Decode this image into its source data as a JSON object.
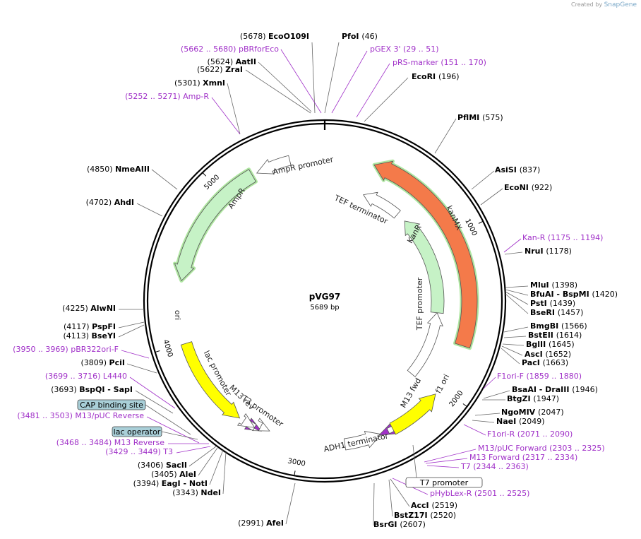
{
  "credit": {
    "created_by": "Created by",
    "logo": "SnapGene"
  },
  "plasmid": {
    "name": "pVG97",
    "size": "5689 bp"
  },
  "site_labels": [
    {
      "type": "enzyme",
      "name": "EcoO109I",
      "coord": "(5678)"
    },
    {
      "type": "enzyme",
      "name": "PfoI",
      "coord": "(46)"
    },
    {
      "type": "primer",
      "name": "pBRforEco",
      "coord": "(5662 .. 5680)"
    },
    {
      "type": "primer",
      "name": "pGEX 3'",
      "coord": "(29 .. 51)"
    },
    {
      "type": "enzyme",
      "name": "AatII",
      "coord": "(5624)"
    },
    {
      "type": "primer",
      "name": "pRS-marker",
      "coord": "(151 .. 170)"
    },
    {
      "type": "enzyme",
      "name": "ZraI",
      "coord": "(5622)"
    },
    {
      "type": "enzyme",
      "name": "EcoRI",
      "coord": "(196)"
    },
    {
      "type": "enzyme",
      "name": "XmnI",
      "coord": "(5301)"
    },
    {
      "type": "primer",
      "name": "Amp-R",
      "coord": "(5252 .. 5271)"
    },
    {
      "type": "enzyme",
      "name": "PflMI",
      "coord": "(575)"
    },
    {
      "type": "enzyme",
      "name": "NmeAIII",
      "coord": "(4850)"
    },
    {
      "type": "enzyme",
      "name": "AsiSI",
      "coord": "(837)"
    },
    {
      "type": "enzyme",
      "name": "EcoNI",
      "coord": "(922)"
    },
    {
      "type": "enzyme",
      "name": "AhdI",
      "coord": "(4702)"
    },
    {
      "type": "primer",
      "name": "Kan-R",
      "coord": "(1175 .. 1194)"
    },
    {
      "type": "enzyme",
      "name": "NruI",
      "coord": "(1178)"
    },
    {
      "type": "enzyme",
      "name": "MluI",
      "coord": "(1398)"
    },
    {
      "type": "enzyme",
      "name": "BfuAI - BspMI",
      "coord": "(1420)"
    },
    {
      "type": "enzyme",
      "name": "PstI",
      "coord": "(1439)"
    },
    {
      "type": "enzyme",
      "name": "BseRI",
      "coord": "(1457)"
    },
    {
      "type": "enzyme",
      "name": "AlwNI",
      "coord": "(4225)"
    },
    {
      "type": "enzyme",
      "name": "BmgBI",
      "coord": "(1566)"
    },
    {
      "type": "enzyme",
      "name": "PspFI",
      "coord": "(4117)"
    },
    {
      "type": "enzyme",
      "name": "BstEII",
      "coord": "(1614)"
    },
    {
      "type": "enzyme",
      "name": "BseYI",
      "coord": "(4113)"
    },
    {
      "type": "enzyme",
      "name": "BglII",
      "coord": "(1645)"
    },
    {
      "type": "primer",
      "name": "pBR322ori-F",
      "coord": "(3950 .. 3969)"
    },
    {
      "type": "enzyme",
      "name": "AscI",
      "coord": "(1652)"
    },
    {
      "type": "enzyme",
      "name": "PciI",
      "coord": "(3809)"
    },
    {
      "type": "enzyme",
      "name": "PacI",
      "coord": "(1663)"
    },
    {
      "type": "primer",
      "name": "L4440",
      "coord": "(3699 .. 3716)"
    },
    {
      "type": "primer",
      "name": "F1ori-F",
      "coord": "(1859 .. 1880)"
    },
    {
      "type": "enzyme",
      "name": "BspQI - SapI",
      "coord": "(3693)"
    },
    {
      "type": "enzyme",
      "name": "BsaAI - DraIII",
      "coord": "(1946)"
    },
    {
      "type": "enzyme",
      "name": "BtgZI",
      "coord": "(1947)"
    },
    {
      "type": "enzyme",
      "name": "NgoMIV",
      "coord": "(2047)"
    },
    {
      "type": "primer",
      "name": "M13/pUC Reverse",
      "coord": "(3481 .. 3503)"
    },
    {
      "type": "enzyme",
      "name": "NaeI",
      "coord": "(2049)"
    },
    {
      "type": "primer",
      "name": "F1ori-R",
      "coord": "(2071 .. 2090)"
    },
    {
      "type": "primer",
      "name": "M13 Reverse",
      "coord": "(3468 .. 3484)"
    },
    {
      "type": "primer",
      "name": "T3",
      "coord": "(3429 .. 3449)"
    },
    {
      "type": "primer",
      "name": "M13/pUC Forward",
      "coord": "(2303 .. 2325)"
    },
    {
      "type": "primer",
      "name": "M13 Forward",
      "coord": "(2317 .. 2334)"
    },
    {
      "type": "primer",
      "name": "T7",
      "coord": "(2344 .. 2363)"
    },
    {
      "type": "enzyme",
      "name": "SacII",
      "coord": "(3406)"
    },
    {
      "type": "enzyme",
      "name": "AleI",
      "coord": "(3405)"
    },
    {
      "type": "enzyme",
      "name": "EagI - NotI",
      "coord": "(3394)"
    },
    {
      "type": "enzyme",
      "name": "NdeI",
      "coord": "(3343)"
    },
    {
      "type": "primer",
      "name": "pHybLex-R",
      "coord": "(2501 .. 2525)"
    },
    {
      "type": "enzyme",
      "name": "AccI",
      "coord": "(2519)"
    },
    {
      "type": "enzyme",
      "name": "BstZ17I",
      "coord": "(2520)"
    },
    {
      "type": "enzyme",
      "name": "BsrGI",
      "coord": "(2607)"
    },
    {
      "type": "enzyme",
      "name": "AfeI",
      "coord": "(2991)"
    }
  ],
  "boxed_features": [
    {
      "name": "CAP binding site",
      "color": "#a9cfd8"
    },
    {
      "name": "lac operator",
      "color": "#a9cfd8"
    },
    {
      "name": "T7 promoter",
      "color": "#ffffff"
    }
  ],
  "features": [
    {
      "name": "AmpR promoter",
      "color": "#ffffff"
    },
    {
      "name": "AmpR",
      "color": "#c6f2c6"
    },
    {
      "name": "ori",
      "color": "#ffff00"
    },
    {
      "name": "lac promoter",
      "color": "#ffffff"
    },
    {
      "name": "M13 rev",
      "color": "#a030c8"
    },
    {
      "name": "T3 promoter",
      "color": "#ffffff"
    },
    {
      "name": "ADH1 terminator",
      "color": "#ffffff"
    },
    {
      "name": "M13 fwd",
      "color": "#a030c8"
    },
    {
      "name": "f1 ori",
      "color": "#ffff00"
    },
    {
      "name": "TEF promoter",
      "color": "#ffffff"
    },
    {
      "name": "KanR",
      "color": "#c6f2c6"
    },
    {
      "name": "TEF terminator",
      "color": "#ffffff"
    },
    {
      "name": "kanMX",
      "color": "#f47a4a"
    }
  ],
  "ticks": [
    "1000",
    "2000",
    "3000",
    "4000",
    "5000"
  ],
  "colors": {
    "enzyme": "#000000",
    "primer": "#a030c8",
    "backbone": "#000000",
    "highlight": "#9be08a"
  }
}
